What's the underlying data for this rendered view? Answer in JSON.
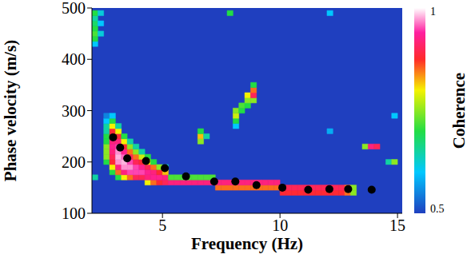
{
  "chart_data": {
    "type": "heatmap",
    "xlabel": "Frequency (Hz)",
    "ylabel": "Phase velocity (m/s)",
    "xlim": [
      2,
      15.2
    ],
    "xticks": [
      5,
      10,
      15
    ],
    "ylim": [
      100,
      500
    ],
    "yticks": [
      100,
      200,
      300,
      400,
      500
    ],
    "cell_size": [
      0.25,
      10
    ],
    "background": 0.5,
    "cells": [
      [
        2.625,
        200,
        0.7
      ],
      [
        2.625,
        210,
        0.75
      ],
      [
        2.625,
        220,
        0.75
      ],
      [
        2.625,
        230,
        0.75
      ],
      [
        2.625,
        240,
        0.7
      ],
      [
        2.625,
        250,
        0.7
      ],
      [
        2.625,
        260,
        0.65
      ],
      [
        2.625,
        270,
        0.65
      ],
      [
        2.625,
        280,
        0.6
      ],
      [
        2.625,
        290,
        0.55
      ],
      [
        2.875,
        180,
        0.7
      ],
      [
        2.875,
        190,
        0.8
      ],
      [
        2.875,
        200,
        0.88
      ],
      [
        2.875,
        210,
        0.9
      ],
      [
        2.875,
        220,
        0.92
      ],
      [
        2.875,
        230,
        0.93
      ],
      [
        2.875,
        240,
        0.92
      ],
      [
        2.875,
        250,
        0.9
      ],
      [
        2.875,
        260,
        0.88
      ],
      [
        2.875,
        270,
        0.8
      ],
      [
        2.875,
        280,
        0.7
      ],
      [
        2.875,
        290,
        0.6
      ],
      [
        3.125,
        170,
        0.7
      ],
      [
        3.125,
        180,
        0.85
      ],
      [
        3.125,
        190,
        0.92
      ],
      [
        3.125,
        200,
        0.97
      ],
      [
        3.125,
        210,
        0.98
      ],
      [
        3.125,
        220,
        0.97
      ],
      [
        3.125,
        230,
        0.95
      ],
      [
        3.125,
        240,
        0.92
      ],
      [
        3.125,
        250,
        0.88
      ],
      [
        3.125,
        260,
        0.8
      ],
      [
        3.125,
        270,
        0.65
      ],
      [
        3.375,
        170,
        0.8
      ],
      [
        3.375,
        180,
        0.92
      ],
      [
        3.375,
        190,
        0.97
      ],
      [
        3.375,
        200,
        0.98
      ],
      [
        3.375,
        210,
        0.96
      ],
      [
        3.375,
        220,
        0.93
      ],
      [
        3.375,
        230,
        0.88
      ],
      [
        3.375,
        240,
        0.8
      ],
      [
        3.375,
        250,
        0.7
      ],
      [
        3.625,
        170,
        0.85
      ],
      [
        3.625,
        180,
        0.95
      ],
      [
        3.625,
        190,
        0.97
      ],
      [
        3.625,
        200,
        0.95
      ],
      [
        3.625,
        210,
        0.9
      ],
      [
        3.625,
        220,
        0.85
      ],
      [
        3.625,
        230,
        0.75
      ],
      [
        3.625,
        240,
        0.65
      ],
      [
        3.875,
        170,
        0.9
      ],
      [
        3.875,
        180,
        0.95
      ],
      [
        3.875,
        190,
        0.95
      ],
      [
        3.875,
        200,
        0.9
      ],
      [
        3.875,
        210,
        0.85
      ],
      [
        3.875,
        220,
        0.75
      ],
      [
        3.875,
        230,
        0.65
      ],
      [
        4.125,
        170,
        0.9
      ],
      [
        4.125,
        180,
        0.95
      ],
      [
        4.125,
        190,
        0.93
      ],
      [
        4.125,
        200,
        0.88
      ],
      [
        4.125,
        210,
        0.78
      ],
      [
        4.125,
        220,
        0.65
      ],
      [
        4.375,
        160,
        0.8
      ],
      [
        4.375,
        170,
        0.92
      ],
      [
        4.375,
        180,
        0.93
      ],
      [
        4.375,
        190,
        0.9
      ],
      [
        4.375,
        200,
        0.8
      ],
      [
        4.375,
        210,
        0.7
      ],
      [
        4.625,
        160,
        0.85
      ],
      [
        4.625,
        170,
        0.93
      ],
      [
        4.625,
        180,
        0.92
      ],
      [
        4.625,
        190,
        0.85
      ],
      [
        4.625,
        200,
        0.7
      ],
      [
        4.875,
        160,
        0.88
      ],
      [
        4.875,
        170,
        0.93
      ],
      [
        4.875,
        180,
        0.88
      ],
      [
        4.875,
        190,
        0.75
      ],
      [
        5.125,
        160,
        0.9
      ],
      [
        5.125,
        170,
        0.92
      ],
      [
        5.125,
        180,
        0.82
      ],
      [
        5.125,
        190,
        0.65
      ],
      [
        5.375,
        160,
        0.92
      ],
      [
        5.375,
        170,
        0.72
      ],
      [
        5.625,
        160,
        0.92
      ],
      [
        5.625,
        170,
        0.72
      ],
      [
        5.875,
        160,
        0.92
      ],
      [
        5.875,
        170,
        0.72
      ],
      [
        6.125,
        160,
        0.92
      ],
      [
        6.125,
        170,
        0.72
      ],
      [
        6.375,
        160,
        0.92
      ],
      [
        6.375,
        170,
        0.72
      ],
      [
        6.625,
        160,
        0.92
      ],
      [
        6.625,
        170,
        0.72
      ],
      [
        6.875,
        160,
        0.92
      ],
      [
        6.875,
        170,
        0.72
      ],
      [
        7.125,
        160,
        0.92
      ],
      [
        7.125,
        170,
        0.72
      ],
      [
        7.375,
        150,
        0.85
      ],
      [
        7.375,
        160,
        0.92
      ],
      [
        7.625,
        150,
        0.85
      ],
      [
        7.625,
        160,
        0.92
      ],
      [
        7.875,
        150,
        0.85
      ],
      [
        7.875,
        160,
        0.92
      ],
      [
        8.125,
        150,
        0.85
      ],
      [
        8.125,
        160,
        0.92
      ],
      [
        8.375,
        150,
        0.85
      ],
      [
        8.375,
        160,
        0.92
      ],
      [
        8.625,
        150,
        0.85
      ],
      [
        8.625,
        160,
        0.92
      ],
      [
        8.875,
        150,
        0.85
      ],
      [
        8.875,
        160,
        0.92
      ],
      [
        9.125,
        150,
        0.85
      ],
      [
        9.125,
        160,
        0.92
      ],
      [
        9.375,
        150,
        0.85
      ],
      [
        9.375,
        160,
        0.92
      ],
      [
        9.625,
        150,
        0.85
      ],
      [
        9.625,
        160,
        0.92
      ],
      [
        9.875,
        150,
        0.85
      ],
      [
        9.875,
        160,
        0.92
      ],
      [
        10.125,
        140,
        0.88
      ],
      [
        10.125,
        150,
        0.9
      ],
      [
        10.375,
        140,
        0.88
      ],
      [
        10.375,
        150,
        0.9
      ],
      [
        10.625,
        140,
        0.88
      ],
      [
        10.625,
        150,
        0.9
      ],
      [
        10.875,
        140,
        0.88
      ],
      [
        10.875,
        150,
        0.9
      ],
      [
        11.125,
        140,
        0.88
      ],
      [
        11.125,
        150,
        0.9
      ],
      [
        11.375,
        140,
        0.88
      ],
      [
        11.375,
        150,
        0.9
      ],
      [
        11.625,
        140,
        0.88
      ],
      [
        11.625,
        150,
        0.9
      ],
      [
        11.875,
        140,
        0.88
      ],
      [
        11.875,
        150,
        0.9
      ],
      [
        12.125,
        140,
        0.88
      ],
      [
        12.125,
        150,
        0.9
      ],
      [
        12.375,
        140,
        0.88
      ],
      [
        12.375,
        150,
        0.9
      ],
      [
        12.625,
        140,
        0.88
      ],
      [
        12.625,
        150,
        0.9
      ],
      [
        12.875,
        140,
        0.85
      ],
      [
        12.875,
        150,
        0.85
      ],
      [
        13.125,
        140,
        0.75
      ],
      [
        13.125,
        150,
        0.75
      ],
      [
        2.125,
        170,
        0.65
      ],
      [
        2.125,
        430,
        0.6
      ],
      [
        2.125,
        440,
        0.7
      ],
      [
        2.125,
        450,
        0.72
      ],
      [
        2.125,
        460,
        0.7
      ],
      [
        2.125,
        470,
        0.68
      ],
      [
        2.125,
        480,
        0.65
      ],
      [
        2.125,
        490,
        0.7
      ],
      [
        2.375,
        450,
        0.62
      ],
      [
        2.375,
        470,
        0.6
      ],
      [
        2.375,
        490,
        0.62
      ],
      [
        6.625,
        240,
        0.75
      ],
      [
        6.625,
        250,
        0.82
      ],
      [
        6.625,
        260,
        0.7
      ],
      [
        6.875,
        250,
        0.65
      ],
      [
        8.125,
        270,
        0.6
      ],
      [
        8.125,
        280,
        0.7
      ],
      [
        8.125,
        290,
        0.78
      ],
      [
        8.125,
        300,
        0.75
      ],
      [
        8.375,
        300,
        0.7
      ],
      [
        8.375,
        310,
        0.72
      ],
      [
        8.625,
        310,
        0.7
      ],
      [
        8.625,
        320,
        0.75
      ],
      [
        8.625,
        330,
        0.8
      ],
      [
        8.875,
        320,
        0.75
      ],
      [
        8.875,
        330,
        0.9
      ],
      [
        8.875,
        340,
        0.85
      ],
      [
        8.875,
        350,
        0.7
      ],
      [
        7.875,
        490,
        0.7
      ],
      [
        12.125,
        490,
        0.6
      ],
      [
        12.125,
        260,
        0.58
      ],
      [
        13.625,
        230,
        0.75
      ],
      [
        13.875,
        230,
        0.92
      ],
      [
        14.125,
        230,
        0.9
      ],
      [
        14.625,
        200,
        0.65
      ],
      [
        14.875,
        200,
        0.75
      ],
      [
        14.875,
        290,
        0.6
      ]
    ],
    "colorbar": {
      "label": "Coherence",
      "range": [
        0.5,
        1
      ],
      "ticks": [
        0.5,
        1
      ]
    },
    "picks": {
      "x": [
        2.9,
        3.2,
        3.5,
        4.3,
        5.1,
        6.0,
        7.2,
        8.1,
        9.0,
        10.1,
        11.2,
        12.1,
        12.9,
        13.9
      ],
      "y": [
        248,
        228,
        207,
        202,
        188,
        172,
        162,
        162,
        155,
        150,
        146,
        147,
        147,
        146
      ],
      "color": "#000000",
      "marker": "circle"
    }
  }
}
